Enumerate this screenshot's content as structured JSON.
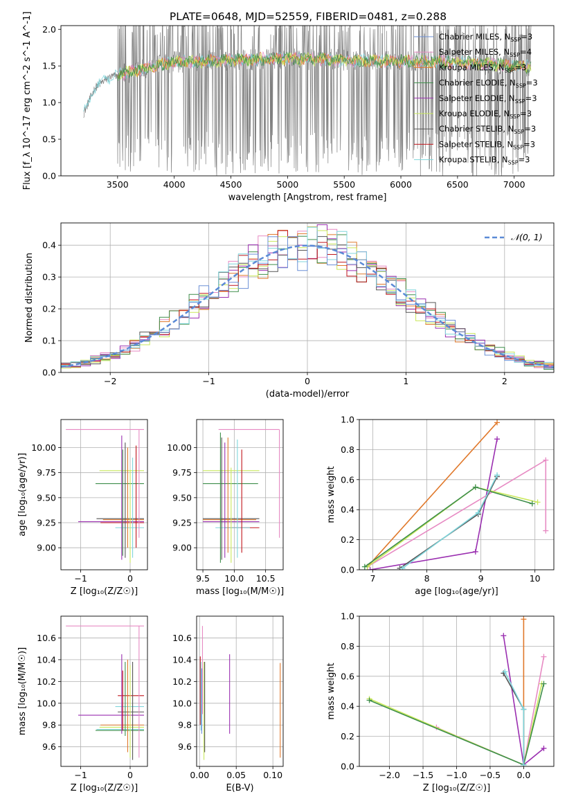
{
  "figure": {
    "title": "PLATE=0648, MJD=52559, FIBERID=0481, z=0.288"
  },
  "colors": {
    "grid": "#b0b0b0",
    "data_gray": "#808080",
    "models": {
      "chabrier_miles": "#6b8fd6",
      "salpeter_miles": "#e78ac3",
      "kroupa_miles": "#e0782a",
      "chabrier_elodie": "#3e8e4a",
      "salpeter_elodie": "#9a2eb0",
      "kroupa_elodie": "#c9e85a",
      "chabrier_stelib": "#555555",
      "salpeter_stelib": "#c0141a",
      "kroupa_stelib": "#7fd6dc"
    },
    "normal_curve": "#5b8ad6"
  },
  "chart_data": [
    {
      "id": "spectrum",
      "type": "line",
      "xlabel": "wavelength [Angstrom, rest frame]",
      "ylabel": "Flux [f_λ 10^-17 erg cm^-2 s^-1 A^-1]",
      "xlim": [
        3000,
        7350
      ],
      "ylim": [
        0,
        2.05
      ],
      "xticks": [
        "3500",
        "4000",
        "4500",
        "5000",
        "5500",
        "6000",
        "6500",
        "7000"
      ],
      "yticks": [
        "0.0",
        "0.5",
        "1.0",
        "1.5",
        "2.0"
      ],
      "grid": false,
      "legend_position": "top-right",
      "legend": [
        {
          "label": "Chabrier MILES, N",
          "sub": "SSP",
          "suffix": "=3",
          "color_key": "chabrier_miles"
        },
        {
          "label": "Salpeter MILES, N",
          "sub": "SSP",
          "suffix": "=4",
          "color_key": "salpeter_miles"
        },
        {
          "label": "Kroupa MILES, N",
          "sub": "SSP",
          "suffix": "=3",
          "color_key": "kroupa_miles"
        },
        {
          "label": "Chabrier ELODIE, N",
          "sub": "SSP",
          "suffix": "=3",
          "color_key": "chabrier_elodie"
        },
        {
          "label": "Salpeter ELODIE, N",
          "sub": "SSP",
          "suffix": "=3",
          "color_key": "salpeter_elodie"
        },
        {
          "label": "Kroupa ELODIE, N",
          "sub": "SSP",
          "suffix": "=3",
          "color_key": "kroupa_elodie"
        },
        {
          "label": "Chabrier STELIB, N",
          "sub": "SSP",
          "suffix": "=3",
          "color_key": "chabrier_stelib"
        },
        {
          "label": "Salpeter STELIB, N",
          "sub": "SSP",
          "suffix": "=3",
          "color_key": "salpeter_stelib"
        },
        {
          "label": "Kroupa STELIB, N",
          "sub": "SSP",
          "suffix": "=3",
          "color_key": "kroupa_stelib"
        }
      ],
      "data_range": [
        3200,
        7150
      ],
      "noisy_from": 3500,
      "continuum_points": [
        [
          3200,
          0.85
        ],
        [
          3300,
          1.2
        ],
        [
          3400,
          1.32
        ],
        [
          3500,
          1.38
        ],
        [
          3700,
          1.45
        ],
        [
          4000,
          1.55
        ],
        [
          4500,
          1.58
        ],
        [
          5000,
          1.6
        ],
        [
          5500,
          1.58
        ],
        [
          6000,
          1.56
        ],
        [
          6500,
          1.55
        ],
        [
          7000,
          1.5
        ],
        [
          7150,
          1.48
        ]
      ]
    },
    {
      "id": "residuals",
      "type": "line",
      "xlabel": "(data-model)/error",
      "ylabel": "Normed distribution",
      "xlim": [
        -2.5,
        2.5
      ],
      "ylim": [
        0,
        0.47
      ],
      "xticks": [
        "−2",
        "−1",
        "0",
        "1",
        "2"
      ],
      "yticks": [
        "0.0",
        "0.1",
        "0.2",
        "0.3",
        "0.4"
      ],
      "grid": true,
      "legend_position": "top-right",
      "legend": [
        "𝒩(0, 1)"
      ],
      "bin_width": 0.1,
      "reference_curve": "normal(0,1)"
    },
    {
      "id": "age_vs_Z",
      "type": "scatter",
      "xlabel": "Z [log₁₀(Z/Z☉)]",
      "ylabel": "age  [log₁₀(age/yr)]",
      "xlim": [
        -1.4,
        0.35
      ],
      "ylim": [
        8.78,
        10.28
      ],
      "xticks": [
        "−1",
        "0"
      ],
      "yticks": [
        "9.00",
        "9.25",
        "9.50",
        "9.75",
        "10.00"
      ],
      "grid": true,
      "errorbars": [
        {
          "x": [
            -1.3,
            0.28
          ],
          "y": 10.18,
          "color_key": "salpeter_miles"
        },
        {
          "x": [
            -0.62,
            0.28
          ],
          "y": 9.77,
          "color_key": "kroupa_elodie"
        },
        {
          "x": [
            -0.7,
            0.28
          ],
          "y": 9.64,
          "color_key": "chabrier_elodie"
        },
        {
          "x": [
            -1.05,
            0.28
          ],
          "y": 9.26,
          "color_key": "salpeter_elodie"
        },
        {
          "x": [
            -0.68,
            0.28
          ],
          "y": 9.29,
          "color_key": "chabrier_stelib"
        },
        {
          "x": [
            -0.6,
            0.28
          ],
          "y": 9.25,
          "color_key": "salpeter_stelib"
        },
        {
          "x": [
            -0.3,
            0.28
          ],
          "y": 9.2,
          "color_key": "kroupa_stelib"
        },
        {
          "x": [
            -0.55,
            0.28
          ],
          "y": 9.28,
          "color_key": "kroupa_miles"
        },
        {
          "x": 0.18,
          "y": [
            9.1,
            10.18
          ],
          "color_key": "salpeter_miles"
        },
        {
          "x": -0.17,
          "y": [
            8.88,
            10.12
          ],
          "color_key": "salpeter_elodie"
        },
        {
          "x": -0.15,
          "y": [
            8.92,
            9.98
          ],
          "color_key": "chabrier_elodie"
        },
        {
          "x": -0.1,
          "y": [
            8.9,
            10.05
          ],
          "color_key": "chabrier_stelib"
        },
        {
          "x": -0.05,
          "y": [
            9.0,
            10.0
          ],
          "color_key": "kroupa_miles"
        },
        {
          "x": 0.0,
          "y": [
            8.85,
            9.78
          ],
          "color_key": "kroupa_elodie"
        },
        {
          "x": 0.05,
          "y": [
            8.9,
            9.9
          ],
          "color_key": "kroupa_stelib"
        },
        {
          "x": 0.12,
          "y": [
            9.0,
            10.02
          ],
          "color_key": "salpeter_stelib"
        }
      ]
    },
    {
      "id": "age_vs_mass",
      "type": "scatter",
      "xlabel": "mass [log₁₀(M/M☉)]",
      "ylabel": "",
      "xlim": [
        9.4,
        10.78
      ],
      "ylim": [
        8.78,
        10.28
      ],
      "xticks": [
        "9.5",
        "10.0",
        "10.5"
      ],
      "yticks": [
        "9.00",
        "9.25",
        "9.50",
        "9.75",
        "10.00"
      ],
      "grid": true,
      "errorbars": [
        {
          "x": [
            9.75,
            10.72
          ],
          "y": 10.18,
          "color_key": "salpeter_miles"
        },
        {
          "x": [
            9.5,
            10.4
          ],
          "y": 9.77,
          "color_key": "kroupa_elodie"
        },
        {
          "x": [
            9.5,
            10.38
          ],
          "y": 9.64,
          "color_key": "chabrier_elodie"
        },
        {
          "x": [
            9.5,
            10.4
          ],
          "y": 9.29,
          "color_key": "chabrier_stelib"
        },
        {
          "x": [
            9.5,
            10.4
          ],
          "y": 9.26,
          "color_key": "salpeter_elodie"
        },
        {
          "x": [
            9.5,
            10.35
          ],
          "y": 9.28,
          "color_key": "kroupa_miles"
        },
        {
          "x": [
            9.85,
            10.4
          ],
          "y": 9.2,
          "color_key": "salpeter_stelib"
        },
        {
          "x": [
            9.7,
            10.25
          ],
          "y": 9.2,
          "color_key": "kroupa_stelib"
        },
        {
          "x": 10.72,
          "y": [
            9.1,
            10.18
          ],
          "color_key": "salpeter_miles"
        },
        {
          "x": 9.78,
          "y": [
            8.85,
            10.15
          ],
          "color_key": "chabrier_elodie"
        },
        {
          "x": 9.8,
          "y": [
            8.88,
            10.1
          ],
          "color_key": "chabrier_stelib"
        },
        {
          "x": 9.85,
          "y": [
            8.9,
            10.05
          ],
          "color_key": "salpeter_elodie"
        },
        {
          "x": 9.9,
          "y": [
            8.95,
            10.1
          ],
          "color_key": "kroupa_miles"
        },
        {
          "x": 9.95,
          "y": [
            8.85,
            9.8
          ],
          "color_key": "kroupa_elodie"
        },
        {
          "x": 10.05,
          "y": [
            8.9,
            10.08
          ],
          "color_key": "kroupa_stelib"
        },
        {
          "x": 10.12,
          "y": [
            8.95,
            9.98
          ],
          "color_key": "salpeter_stelib"
        }
      ]
    },
    {
      "id": "weight_vs_age",
      "type": "line",
      "xlabel": "age  [log₁₀(age/yr)]",
      "ylabel": "mass weight",
      "xlim": [
        6.75,
        10.35
      ],
      "ylim": [
        0,
        1.0
      ],
      "xticks": [
        "7",
        "8",
        "9",
        "10"
      ],
      "yticks": [
        "0.0",
        "0.2",
        "0.4",
        "0.6",
        "0.8",
        "1.0"
      ],
      "grid": true,
      "series": [
        {
          "color_key": "kroupa_miles",
          "x": [
            6.9,
            9.3
          ],
          "y": [
            0.02,
            0.98
          ]
        },
        {
          "color_key": "salpeter_elodie",
          "x": [
            6.95,
            8.9,
            9.3
          ],
          "y": [
            0.0,
            0.12,
            0.87
          ]
        },
        {
          "color_key": "salpeter_miles",
          "x": [
            6.9,
            10.2,
            10.2
          ],
          "y": [
            0.02,
            0.73,
            0.26
          ]
        },
        {
          "color_key": "kroupa_elodie",
          "x": [
            6.9,
            8.9,
            10.05
          ],
          "y": [
            0.02,
            0.55,
            0.45
          ]
        },
        {
          "color_key": "chabrier_elodie",
          "x": [
            6.85,
            8.9,
            9.95
          ],
          "y": [
            0.02,
            0.55,
            0.44
          ]
        },
        {
          "color_key": "chabrier_stelib",
          "x": [
            7.5,
            8.95,
            9.3
          ],
          "y": [
            0.01,
            0.37,
            0.62
          ]
        },
        {
          "color_key": "kroupa_stelib",
          "x": [
            7.55,
            8.95,
            9.3
          ],
          "y": [
            0.01,
            0.38,
            0.63
          ]
        }
      ]
    },
    {
      "id": "mass_vs_Z",
      "type": "scatter",
      "xlabel": "Z [log₁₀(Z/Z☉)]",
      "ylabel": "mass [log₁₀(M/M☉)]",
      "xlim": [
        -1.4,
        0.35
      ],
      "ylim": [
        9.42,
        10.8
      ],
      "xticks": [
        "−1",
        "0"
      ],
      "yticks": [
        "9.6",
        "9.8",
        "10.0",
        "10.2",
        "10.4",
        "10.6"
      ],
      "grid": true,
      "errorbars": [
        {
          "x": [
            -1.3,
            0.28
          ],
          "y": 10.71,
          "color_key": "salpeter_miles"
        },
        {
          "x": [
            -0.25,
            0.28
          ],
          "y": 10.07,
          "color_key": "salpeter_stelib"
        },
        {
          "x": [
            -0.3,
            0.28
          ],
          "y": 9.97,
          "color_key": "kroupa_stelib"
        },
        {
          "x": [
            -0.25,
            0.28
          ],
          "y": 9.92,
          "color_key": "chabrier_stelib"
        },
        {
          "x": [
            -1.05,
            0.28
          ],
          "y": 9.89,
          "color_key": "salpeter_elodie"
        },
        {
          "x": [
            -0.6,
            0.28
          ],
          "y": 9.8,
          "color_key": "kroupa_miles"
        },
        {
          "x": [
            -0.62,
            0.28
          ],
          "y": 9.78,
          "color_key": "kroupa_elodie"
        },
        {
          "x": [
            -0.7,
            0.28
          ],
          "y": 9.75,
          "color_key": "chabrier_elodie"
        },
        {
          "x": [
            -0.68,
            0.28
          ],
          "y": 9.76,
          "color_key": "kroupa_stelib"
        },
        {
          "x": 0.18,
          "y": [
            9.5,
            10.71
          ],
          "color_key": "salpeter_miles"
        },
        {
          "x": -0.17,
          "y": [
            9.72,
            10.45
          ],
          "color_key": "salpeter_elodie"
        },
        {
          "x": -0.15,
          "y": [
            9.75,
            10.3
          ],
          "color_key": "salpeter_stelib"
        },
        {
          "x": -0.1,
          "y": [
            9.7,
            10.38
          ],
          "color_key": "chabrier_elodie"
        },
        {
          "x": -0.05,
          "y": [
            9.55,
            10.4
          ],
          "color_key": "kroupa_miles"
        },
        {
          "x": 0.0,
          "y": [
            9.5,
            10.35
          ],
          "color_key": "kroupa_elodie"
        },
        {
          "x": 0.05,
          "y": [
            9.48,
            10.38
          ],
          "color_key": "chabrier_stelib"
        }
      ]
    },
    {
      "id": "mass_vs_ebv",
      "type": "scatter",
      "xlabel": "E(B-V)",
      "ylabel": "",
      "xlim": [
        -0.004,
        0.114
      ],
      "ylim": [
        9.42,
        10.8
      ],
      "xticks": [
        "0.00",
        "0.05",
        "0.10"
      ],
      "yticks": [
        "9.6",
        "9.8",
        "10.0",
        "10.2",
        "10.4",
        "10.6"
      ],
      "grid": true,
      "errorbars": [
        {
          "x": 0.001,
          "y": [
            9.8,
            10.43
          ],
          "color_key": "salpeter_stelib"
        },
        {
          "x": 0.002,
          "y": [
            9.75,
            10.38
          ],
          "color_key": "kroupa_stelib"
        },
        {
          "x": 0.003,
          "y": [
            9.72,
            10.32
          ],
          "color_key": "chabrier_miles"
        },
        {
          "x": 0.004,
          "y": [
            9.9,
            10.71
          ],
          "color_key": "salpeter_miles"
        },
        {
          "x": 0.006,
          "y": [
            9.48,
            10.38
          ],
          "color_key": "kroupa_elodie"
        },
        {
          "x": 0.007,
          "y": [
            9.55,
            10.38
          ],
          "color_key": "chabrier_stelib"
        },
        {
          "x": 0.041,
          "y": [
            9.72,
            10.45
          ],
          "color_key": "salpeter_elodie"
        },
        {
          "x": 0.11,
          "y": [
            9.5,
            10.37
          ],
          "color_key": "kroupa_miles"
        }
      ]
    },
    {
      "id": "weight_vs_Z",
      "type": "line",
      "xlabel": "Z [log₁₀(Z/Z☉)]",
      "ylabel": "mass weight",
      "xlim": [
        -2.45,
        0.45
      ],
      "ylim": [
        0,
        1.0
      ],
      "xticks": [
        "−2.0",
        "−1.5",
        "−1.0",
        "−0.5",
        "0.0"
      ],
      "yticks": [
        "0.0",
        "0.2",
        "0.4",
        "0.6",
        "0.8",
        "1.0"
      ],
      "grid": true,
      "series": [
        {
          "color_key": "kroupa_miles",
          "x": [
            0.0,
            0.0
          ],
          "y": [
            0.01,
            0.98
          ]
        },
        {
          "color_key": "salpeter_elodie",
          "x": [
            -0.3,
            0.0,
            0.3
          ],
          "y": [
            0.87,
            0.01,
            0.12
          ]
        },
        {
          "color_key": "salpeter_miles",
          "x": [
            -1.3,
            0.0,
            0.3
          ],
          "y": [
            0.26,
            0.01,
            0.73
          ]
        },
        {
          "color_key": "kroupa_elodie",
          "x": [
            -2.3,
            0.0,
            0.27
          ],
          "y": [
            0.45,
            0.01,
            0.55
          ]
        },
        {
          "color_key": "chabrier_elodie",
          "x": [
            -2.3,
            0.0,
            0.3
          ],
          "y": [
            0.44,
            0.01,
            0.55
          ]
        },
        {
          "color_key": "chabrier_stelib",
          "x": [
            -0.3,
            0.0,
            0.0
          ],
          "y": [
            0.62,
            0.38,
            0.01
          ]
        },
        {
          "color_key": "kroupa_stelib",
          "x": [
            -0.28,
            0.0,
            0.0
          ],
          "y": [
            0.63,
            0.38,
            0.01
          ]
        }
      ]
    }
  ]
}
